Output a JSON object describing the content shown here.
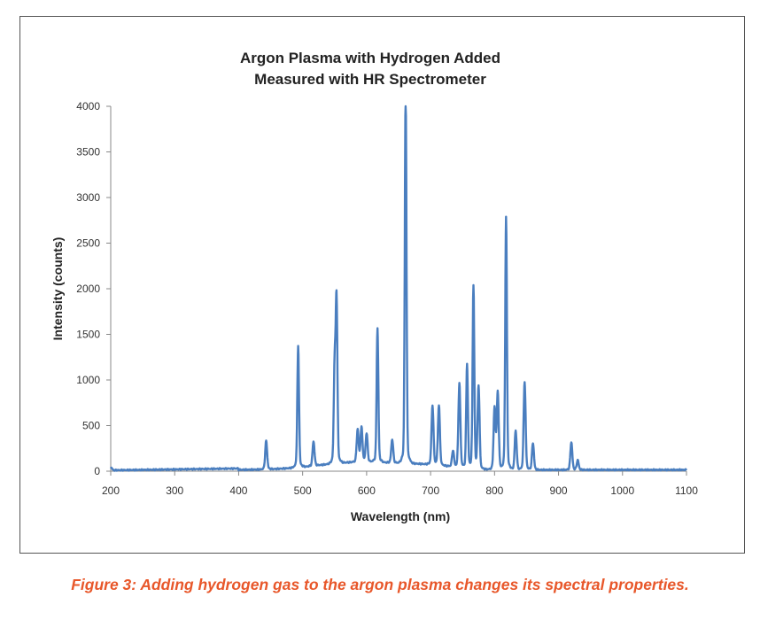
{
  "chart_data": {
    "type": "line",
    "title": [
      "Argon Plasma with Hydrogen Added",
      "Measured with HR Spectrometer"
    ],
    "xlabel": "Wavelength (nm)",
    "ylabel": "Intensity (counts)",
    "xlim": [
      200,
      1100
    ],
    "ylim": [
      0,
      4000
    ],
    "xticks": [
      200,
      300,
      400,
      500,
      600,
      700,
      800,
      900,
      1000,
      1100
    ],
    "yticks": [
      0,
      500,
      1000,
      1500,
      2000,
      2500,
      3000,
      3500,
      4000
    ],
    "grid": false,
    "line_color": "#4a7ebf",
    "peaks": [
      {
        "x": 443,
        "y": 310
      },
      {
        "x": 493,
        "y": 1300
      },
      {
        "x": 517,
        "y": 290
      },
      {
        "x": 550,
        "y": 1060
      },
      {
        "x": 553,
        "y": 1780
      },
      {
        "x": 586,
        "y": 400
      },
      {
        "x": 592,
        "y": 420
      },
      {
        "x": 600,
        "y": 360
      },
      {
        "x": 617,
        "y": 1470
      },
      {
        "x": 640,
        "y": 300
      },
      {
        "x": 661,
        "y": 3980
      },
      {
        "x": 703,
        "y": 670
      },
      {
        "x": 713,
        "y": 670
      },
      {
        "x": 735,
        "y": 200
      },
      {
        "x": 745,
        "y": 910
      },
      {
        "x": 757,
        "y": 1120
      },
      {
        "x": 767,
        "y": 1940
      },
      {
        "x": 775,
        "y": 890
      },
      {
        "x": 800,
        "y": 660
      },
      {
        "x": 805,
        "y": 820
      },
      {
        "x": 818,
        "y": 2670
      },
      {
        "x": 833,
        "y": 420
      },
      {
        "x": 847,
        "y": 940
      },
      {
        "x": 860,
        "y": 290
      },
      {
        "x": 920,
        "y": 300
      },
      {
        "x": 930,
        "y": 110
      }
    ]
  },
  "caption": "Figure 3: Adding hydrogen gas to the argon plasma changes its spectral properties."
}
